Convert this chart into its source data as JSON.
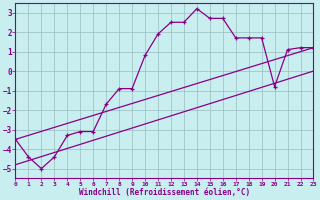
{
  "xlabel": "Windchill (Refroidissement éolien,°C)",
  "background_color": "#c8eef0",
  "grid_color": "#9abcbe",
  "line_color": "#880088",
  "hours": [
    0,
    1,
    2,
    3,
    4,
    5,
    6,
    7,
    8,
    9,
    10,
    11,
    12,
    13,
    14,
    15,
    16,
    17,
    18,
    19,
    20,
    21,
    22,
    23
  ],
  "temp": [
    -3.5,
    -4.4,
    -5.0,
    -4.4,
    -3.3,
    -3.1,
    -3.1,
    -1.7,
    -0.9,
    -0.9,
    0.8,
    1.9,
    2.5,
    2.5,
    3.2,
    2.7,
    2.7,
    1.7,
    1.7,
    1.7,
    -0.8,
    1.1,
    1.2,
    1.2
  ],
  "line1": [
    [
      -3.5,
      1.2
    ],
    [
      0,
      23
    ]
  ],
  "line2": [
    [
      -4.8,
      0.0
    ],
    [
      0,
      23
    ]
  ],
  "xlim": [
    0,
    23
  ],
  "ylim": [
    -5.5,
    3.5
  ],
  "xticks": [
    0,
    1,
    2,
    3,
    4,
    5,
    6,
    7,
    8,
    9,
    10,
    11,
    12,
    13,
    14,
    15,
    16,
    17,
    18,
    19,
    20,
    21,
    22,
    23
  ],
  "yticks": [
    -5,
    -4,
    -3,
    -2,
    -1,
    0,
    1,
    2,
    3
  ]
}
